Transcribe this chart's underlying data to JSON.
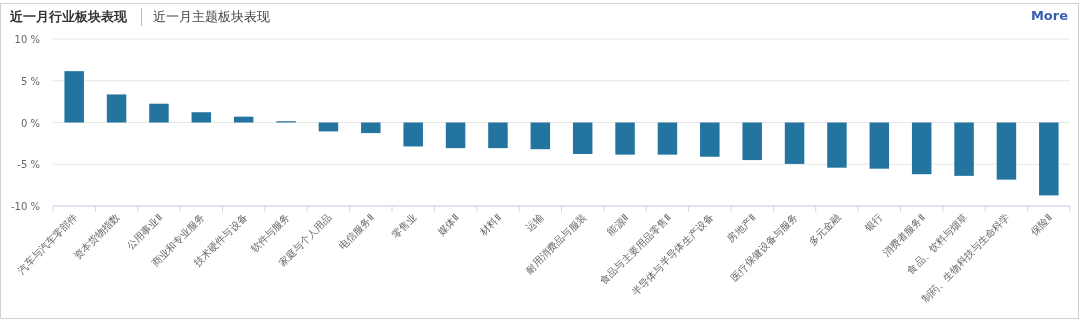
{
  "chart_data": {
    "type": "bar",
    "title": "近一月行业板块表现",
    "subtitle": "近一月主题板块表现",
    "annotations": [
      "More"
    ],
    "categories": [
      "汽车与汽车零部件",
      "资本货物指数",
      "公用事业Ⅱ",
      "商业和专业服务",
      "技术硬件与设备",
      "软件与服务",
      "家庭与个人用品",
      "电信服务Ⅱ",
      "零售业",
      "媒体Ⅱ",
      "材料Ⅱ",
      "运输",
      "耐用消费品与服装",
      "能源Ⅱ",
      "食品与主要用品零售Ⅱ",
      "半导体与半导体生产设备",
      "房地产Ⅱ",
      "医疗保健设备与服务",
      "多元金融",
      "银行",
      "消费者服务Ⅱ",
      "食品、饮料与烟草",
      "制药、生物科技与生命科学",
      "保险Ⅱ"
    ],
    "values": [
      6.15,
      3.36,
      2.25,
      1.23,
      0.7,
      0.15,
      -1.07,
      -1.27,
      -2.87,
      -3.07,
      -3.07,
      -3.2,
      -3.77,
      -3.85,
      -3.85,
      -4.1,
      -4.5,
      -4.96,
      -5.41,
      -5.53,
      -6.19,
      -6.39,
      -6.84,
      -8.73
    ],
    "color": "#2474a0",
    "ylim": [
      -10,
      10
    ],
    "yticks": [
      {
        "value": 10,
        "label": "10 %"
      },
      {
        "value": 5,
        "label": "5 %"
      },
      {
        "value": 0,
        "label": "0 %"
      },
      {
        "value": -5,
        "label": "-5 %"
      },
      {
        "value": -10,
        "label": "-10 %"
      }
    ],
    "grid": "y"
  }
}
